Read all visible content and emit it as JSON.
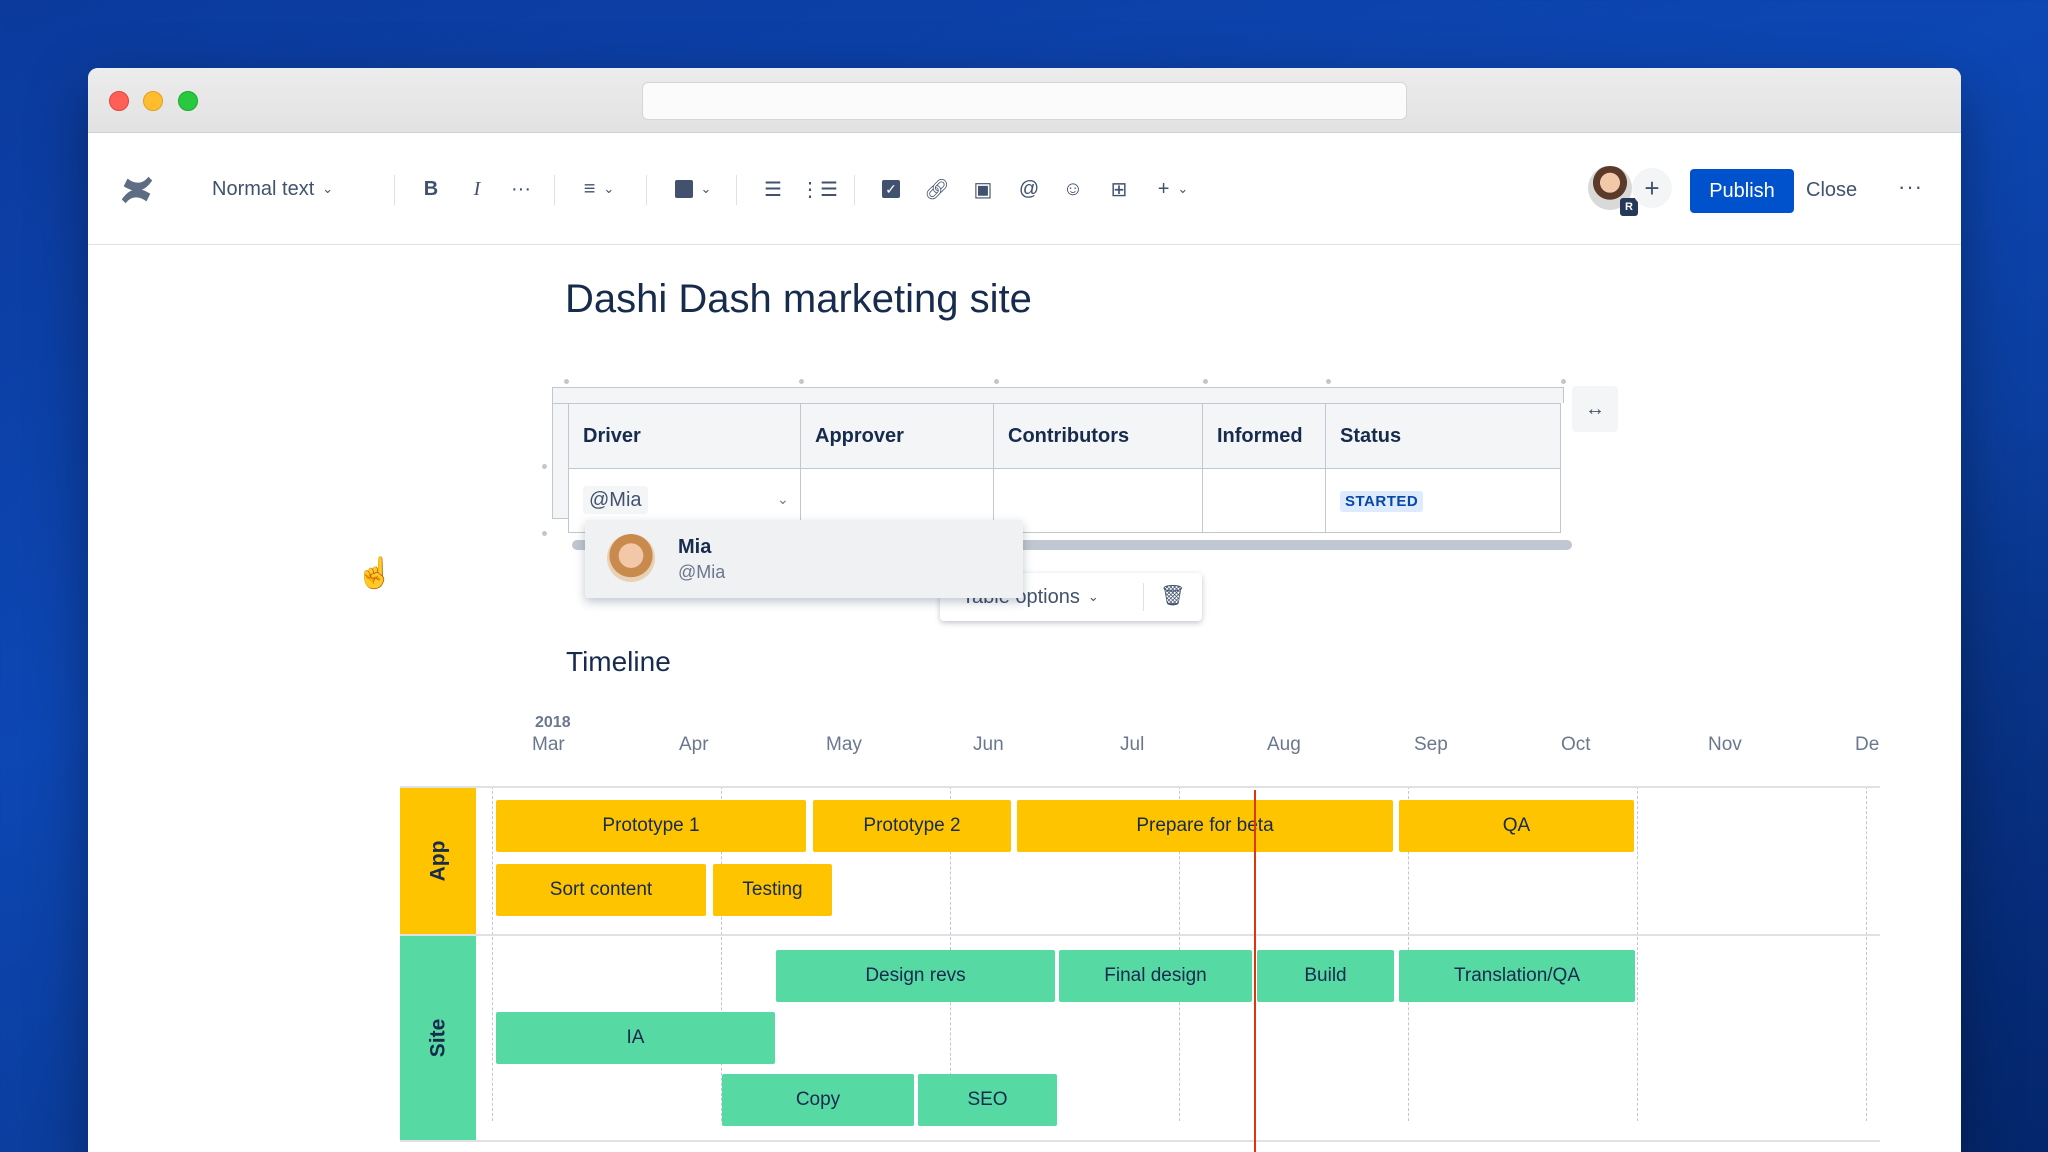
{
  "toolbar": {
    "text_style": "Normal text",
    "publish_label": "Publish",
    "close_label": "Close",
    "more_label": "···",
    "user_badge": "R"
  },
  "page": {
    "title": "Dashi Dash marketing site"
  },
  "table": {
    "headers": [
      "Driver",
      "Approver",
      "Contributors",
      "Informed",
      "Status"
    ],
    "driver_input": "@Mia",
    "status": "STARTED"
  },
  "mention_popup": {
    "name": "Mia",
    "handle": "@Mia"
  },
  "table_options": {
    "label": "Table options"
  },
  "timeline": {
    "title": "Timeline",
    "year": "2018",
    "months": [
      "Mar",
      "Apr",
      "May",
      "Jun",
      "Jul",
      "Aug",
      "Sep",
      "Oct",
      "Nov",
      "De"
    ],
    "lanes": [
      {
        "name": "App",
        "color": "#ffc400",
        "bars": [
          {
            "label": "Prototype 1"
          },
          {
            "label": "Prototype 2"
          },
          {
            "label": "Prepare for beta"
          },
          {
            "label": "QA"
          },
          {
            "label": "Sort content"
          },
          {
            "label": "Testing"
          }
        ]
      },
      {
        "name": "Site",
        "color": "#57d9a3",
        "bars": [
          {
            "label": "Design revs"
          },
          {
            "label": "Final design"
          },
          {
            "label": "Build"
          },
          {
            "label": "Translation/QA"
          },
          {
            "label": "IA"
          },
          {
            "label": "Copy"
          },
          {
            "label": "SEO"
          }
        ]
      }
    ]
  }
}
